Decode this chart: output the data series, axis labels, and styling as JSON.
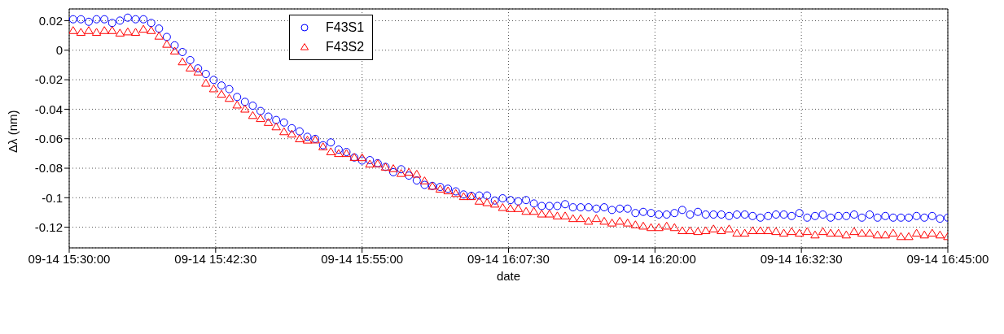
{
  "chart_data": {
    "type": "scatter",
    "xlabel": "date",
    "ylabel": "Δλ (nm)",
    "x": [
      "--09-14T15:30:20",
      "--09-14T15:31:00",
      "--09-14T15:31:40",
      "--09-14T15:32:20",
      "--09-14T15:33:00",
      "--09-14T15:33:40",
      "--09-14T15:34:20",
      "--09-14T15:35:00",
      "--09-14T15:35:40",
      "--09-14T15:36:20",
      "--09-14T15:37:00",
      "--09-14T15:37:40",
      "--09-14T15:38:20",
      "--09-14T15:39:00",
      "--09-14T15:39:40",
      "--09-14T15:40:20",
      "--09-14T15:41:00",
      "--09-14T15:41:40",
      "--09-14T15:42:20",
      "--09-14T15:43:00",
      "--09-14T15:43:40",
      "--09-14T15:44:20",
      "--09-14T15:45:00",
      "--09-14T15:45:40",
      "--09-14T15:46:20",
      "--09-14T15:47:00",
      "--09-14T15:47:40",
      "--09-14T15:48:20",
      "--09-14T15:49:00",
      "--09-14T15:49:40",
      "--09-14T15:50:20",
      "--09-14T15:51:00",
      "--09-14T15:51:40",
      "--09-14T15:52:20",
      "--09-14T15:53:00",
      "--09-14T15:53:40",
      "--09-14T15:54:20",
      "--09-14T15:55:00",
      "--09-14T15:55:40",
      "--09-14T15:56:20",
      "--09-14T15:57:00",
      "--09-14T15:57:40",
      "--09-14T15:58:20",
      "--09-14T15:59:00",
      "--09-14T15:59:40",
      "--09-14T16:00:20",
      "--09-14T16:01:00",
      "--09-14T16:01:40",
      "--09-14T16:02:20",
      "--09-14T16:03:00",
      "--09-14T16:03:40",
      "--09-14T16:04:20",
      "--09-14T16:05:00",
      "--09-14T16:05:40",
      "--09-14T16:06:20",
      "--09-14T16:07:00",
      "--09-14T16:07:40",
      "--09-14T16:08:20",
      "--09-14T16:09:00",
      "--09-14T16:09:40",
      "--09-14T16:10:20",
      "--09-14T16:11:00",
      "--09-14T16:11:40",
      "--09-14T16:12:20",
      "--09-14T16:13:00",
      "--09-14T16:13:40",
      "--09-14T16:14:20",
      "--09-14T16:15:00",
      "--09-14T16:15:40",
      "--09-14T16:16:20",
      "--09-14T16:17:00",
      "--09-14T16:17:40",
      "--09-14T16:18:20",
      "--09-14T16:19:00",
      "--09-14T16:19:40",
      "--09-14T16:20:20",
      "--09-14T16:21:00",
      "--09-14T16:21:40",
      "--09-14T16:22:20",
      "--09-14T16:23:00",
      "--09-14T16:23:40",
      "--09-14T16:24:20",
      "--09-14T16:25:00",
      "--09-14T16:25:40",
      "--09-14T16:26:20",
      "--09-14T16:27:00",
      "--09-14T16:27:40",
      "--09-14T16:28:20",
      "--09-14T16:29:00",
      "--09-14T16:29:40",
      "--09-14T16:30:20",
      "--09-14T16:31:00",
      "--09-14T16:31:40",
      "--09-14T16:32:20",
      "--09-14T16:33:00",
      "--09-14T16:33:40",
      "--09-14T16:34:20",
      "--09-14T16:35:00",
      "--09-14T16:35:40",
      "--09-14T16:36:20",
      "--09-14T16:37:00",
      "--09-14T16:37:40",
      "--09-14T16:38:20",
      "--09-14T16:39:00",
      "--09-14T16:39:40",
      "--09-14T16:40:20",
      "--09-14T16:41:00",
      "--09-14T16:41:40",
      "--09-14T16:42:20",
      "--09-14T16:43:00",
      "--09-14T16:43:40",
      "--09-14T16:44:20",
      "--09-14T16:45:00"
    ],
    "series": [
      {
        "name": "F43S1",
        "color": "#0000ff",
        "marker": "circle",
        "values": [
          0.021,
          0.021,
          0.0193,
          0.021,
          0.021,
          0.0185,
          0.0201,
          0.0221,
          0.021,
          0.021,
          0.0185,
          0.0147,
          0.009,
          0.0033,
          -0.0012,
          -0.0067,
          -0.0123,
          -0.0161,
          -0.0201,
          -0.0239,
          -0.0264,
          -0.0317,
          -0.035,
          -0.0376,
          -0.0412,
          -0.045,
          -0.0473,
          -0.049,
          -0.0529,
          -0.055,
          -0.0587,
          -0.0601,
          -0.0644,
          -0.0625,
          -0.0674,
          -0.069,
          -0.0727,
          -0.0748,
          -0.0745,
          -0.0766,
          -0.0791,
          -0.0827,
          -0.0807,
          -0.085,
          -0.0883,
          -0.0913,
          -0.092,
          -0.0927,
          -0.0939,
          -0.0957,
          -0.0978,
          -0.0987,
          -0.0985,
          -0.0985,
          -0.1019,
          -0.1004,
          -0.1016,
          -0.1025,
          -0.1016,
          -0.1039,
          -0.1056,
          -0.1056,
          -0.1056,
          -0.1044,
          -0.1065,
          -0.1065,
          -0.1065,
          -0.1074,
          -0.1065,
          -0.1083,
          -0.1074,
          -0.1074,
          -0.1104,
          -0.1096,
          -0.1104,
          -0.1114,
          -0.1114,
          -0.1104,
          -0.1083,
          -0.1114,
          -0.1096,
          -0.1114,
          -0.1114,
          -0.1114,
          -0.1124,
          -0.1114,
          -0.1114,
          -0.1124,
          -0.1135,
          -0.1124,
          -0.1114,
          -0.1114,
          -0.1124,
          -0.1104,
          -0.1135,
          -0.1124,
          -0.1114,
          -0.1135,
          -0.1124,
          -0.1124,
          -0.1114,
          -0.1135,
          -0.1114,
          -0.1135,
          -0.1124,
          -0.1135,
          -0.1135,
          -0.1135,
          -0.1124,
          -0.1135,
          -0.1124,
          -0.1142,
          -0.1135
        ]
      },
      {
        "name": "F43S2",
        "color": "#ff0000",
        "marker": "triangle",
        "values": [
          0.0133,
          0.0121,
          0.0133,
          0.0121,
          0.0133,
          0.0133,
          0.0116,
          0.0124,
          0.0121,
          0.0142,
          0.0133,
          0.0095,
          0.004,
          -0.0006,
          -0.0079,
          -0.0121,
          -0.0148,
          -0.0224,
          -0.0262,
          -0.0299,
          -0.0327,
          -0.0372,
          -0.04,
          -0.0443,
          -0.0464,
          -0.049,
          -0.052,
          -0.0553,
          -0.0569,
          -0.0601,
          -0.061,
          -0.0609,
          -0.0655,
          -0.0689,
          -0.0701,
          -0.0701,
          -0.0727,
          -0.0729,
          -0.0772,
          -0.077,
          -0.0793,
          -0.0803,
          -0.0836,
          -0.0828,
          -0.0841,
          -0.0886,
          -0.0923,
          -0.0942,
          -0.0954,
          -0.0972,
          -0.0993,
          -0.0993,
          -0.1024,
          -0.1034,
          -0.1044,
          -0.1067,
          -0.1074,
          -0.1074,
          -0.1093,
          -0.1093,
          -0.1111,
          -0.1111,
          -0.1124,
          -0.1124,
          -0.1142,
          -0.1142,
          -0.116,
          -0.1142,
          -0.116,
          -0.1172,
          -0.116,
          -0.1172,
          -0.1184,
          -0.1193,
          -0.1203,
          -0.1203,
          -0.1193,
          -0.1203,
          -0.1224,
          -0.1224,
          -0.123,
          -0.1224,
          -0.1212,
          -0.1224,
          -0.1212,
          -0.1241,
          -0.1241,
          -0.1224,
          -0.1224,
          -0.1224,
          -0.123,
          -0.1241,
          -0.123,
          -0.1241,
          -0.123,
          -0.1253,
          -0.123,
          -0.1241,
          -0.1241,
          -0.1253,
          -0.123,
          -0.1241,
          -0.1241,
          -0.1253,
          -0.1253,
          -0.1241,
          -0.1264,
          -0.1264,
          -0.1241,
          -0.1253,
          -0.1241,
          -0.1253,
          -0.1264
        ]
      }
    ],
    "xlim": [
      "--09-14T15:30:00",
      "--09-14T16:45:00"
    ],
    "xticks": [
      {
        "value": "--09-14T15:30:00",
        "label": "09-14 15:30:00"
      },
      {
        "value": "--09-14T15:42:30",
        "label": "09-14 15:42:30"
      },
      {
        "value": "--09-14T15:55:00",
        "label": "09-14 15:55:00"
      },
      {
        "value": "--09-14T16:07:30",
        "label": "09-14 16:07:30"
      },
      {
        "value": "--09-14T16:20:00",
        "label": "09-14 16:20:00"
      },
      {
        "value": "--09-14T16:32:30",
        "label": "09-14 16:32:30"
      },
      {
        "value": "--09-14T16:45:00",
        "label": "09-14 16:45:00"
      }
    ],
    "ylim": [
      -0.134,
      0.028
    ],
    "yticks": [
      0.02,
      0,
      -0.02,
      -0.04,
      -0.06,
      -0.08,
      -0.1,
      -0.12
    ],
    "grid": true,
    "legend": "top left"
  }
}
